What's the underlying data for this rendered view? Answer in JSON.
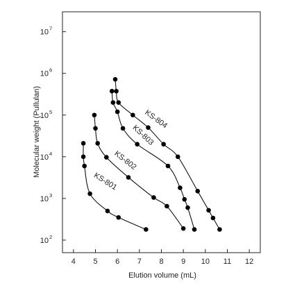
{
  "chart_data": {
    "type": "scatter",
    "xlabel": "Elution volume (mL)",
    "ylabel": "Molecular weight (Pullulan)",
    "x_ticks": [
      4,
      5,
      6,
      7,
      8,
      9,
      10,
      11,
      12
    ],
    "y_ticks": [
      {
        "value": 100,
        "base": "10",
        "exp": "2"
      },
      {
        "value": 1000,
        "base": "10",
        "exp": "3"
      },
      {
        "value": 10000,
        "base": "10",
        "exp": "4"
      },
      {
        "value": 100000,
        "base": "10",
        "exp": "5"
      },
      {
        "value": 1000000,
        "base": "10",
        "exp": "6"
      },
      {
        "value": 10000000,
        "base": "10",
        "exp": "7"
      }
    ],
    "xlim": [
      3.5,
      12.5
    ],
    "ylim": [
      50,
      30000000
    ],
    "y_scale": "log",
    "grid": false,
    "series": [
      {
        "name": "KS-801",
        "points": [
          [
            4.45,
            21000
          ],
          [
            4.45,
            10000
          ],
          [
            4.5,
            6000
          ],
          [
            4.75,
            1300
          ],
          [
            5.55,
            500
          ],
          [
            6.05,
            350
          ],
          [
            7.3,
            180
          ]
        ]
      },
      {
        "name": "KS-802",
        "points": [
          [
            4.95,
            100000
          ],
          [
            5.0,
            48000
          ],
          [
            5.1,
            21000
          ],
          [
            5.5,
            9700
          ],
          [
            6.5,
            3200
          ],
          [
            7.65,
            1050
          ],
          [
            8.25,
            650
          ],
          [
            9.0,
            190
          ]
        ]
      },
      {
        "name": "KS-803",
        "points": [
          [
            5.75,
            375000
          ],
          [
            5.8,
            200000
          ],
          [
            6.0,
            120000
          ],
          [
            6.25,
            48000
          ],
          [
            6.9,
            20000
          ],
          [
            8.3,
            6000
          ],
          [
            8.85,
            1800
          ],
          [
            9.05,
            950
          ],
          [
            9.2,
            600
          ],
          [
            9.5,
            180
          ]
        ]
      },
      {
        "name": "KS-804",
        "points": [
          [
            5.9,
            720000
          ],
          [
            5.95,
            375000
          ],
          [
            6.05,
            200000
          ],
          [
            6.7,
            100000
          ],
          [
            7.4,
            50000
          ],
          [
            8.1,
            20000
          ],
          [
            8.75,
            10000
          ],
          [
            9.65,
            1500
          ],
          [
            10.15,
            520
          ],
          [
            10.35,
            340
          ],
          [
            10.65,
            180
          ]
        ]
      }
    ]
  }
}
